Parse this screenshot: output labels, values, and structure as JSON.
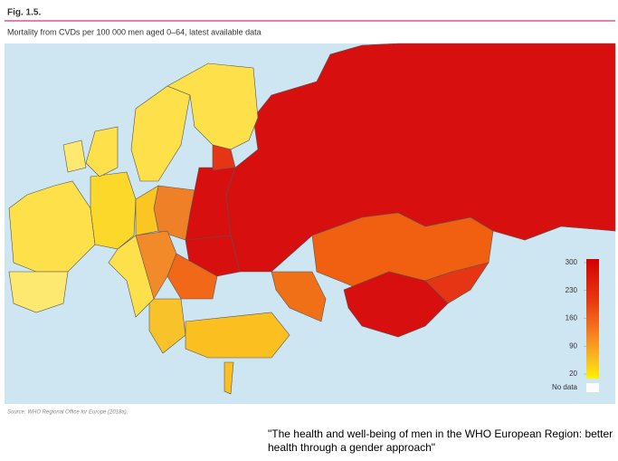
{
  "header": {
    "figure": "Fig. 1.5.",
    "title": "Mortality from CVDs per 100 000 men aged 0–64, latest available data"
  },
  "legend": {
    "ticks": [
      300,
      230,
      160,
      90,
      20
    ],
    "no_data": "No data"
  },
  "source": "Source: WHO Regional Office for Europe (2018a).",
  "caption": "\"The health and well-being of men in the WHO European Region: better health through a gender approach\""
}
